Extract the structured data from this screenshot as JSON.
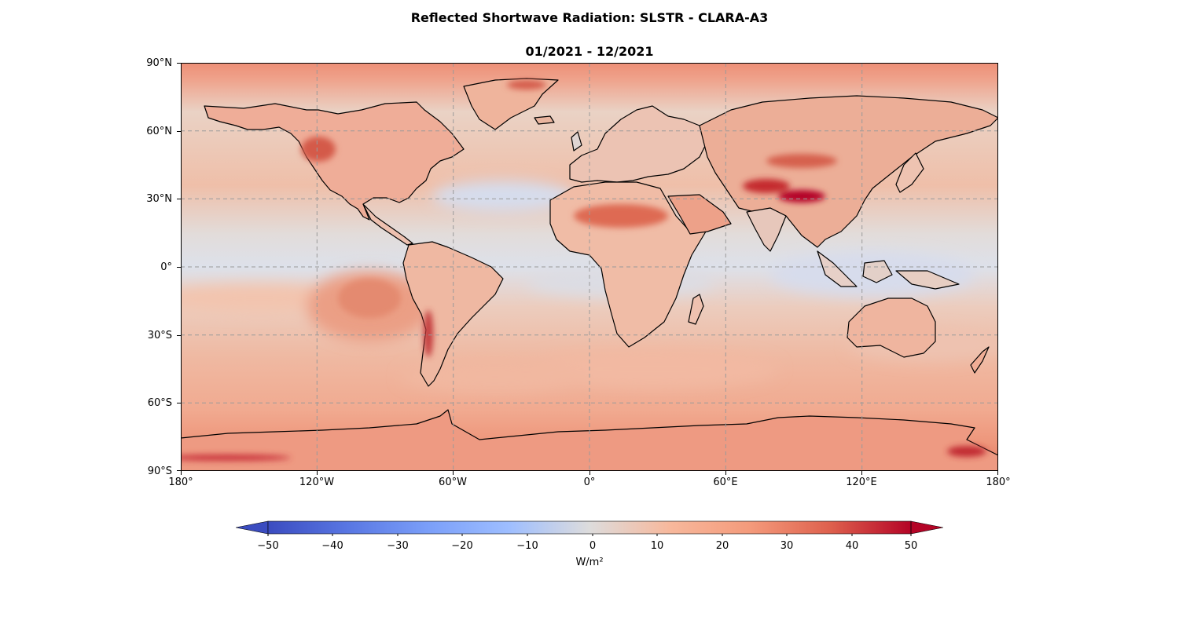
{
  "title": "Reflected Shortwave Radiation: SLSTR - CLARA-A3",
  "subtitle": "01/2021 - 12/2021",
  "map": {
    "projection": "PlateCarree",
    "lon_range": [
      -180,
      180
    ],
    "lat_range": [
      -90,
      90
    ],
    "gridlines": "dashed grey every 60° lon and 30° lat",
    "coastlines": "black",
    "lat_ticks": [
      "90°N",
      "60°N",
      "30°N",
      "0°",
      "30°S",
      "60°S",
      "90°S"
    ],
    "lon_ticks": [
      "180°",
      "120°W",
      "60°W",
      "0°",
      "60°E",
      "120°E",
      "180°"
    ]
  },
  "colorbar": {
    "colormap": "coolwarm",
    "range": [
      -55,
      55
    ],
    "extend": "both",
    "ticks": [
      "−50",
      "−40",
      "−30",
      "−20",
      "−10",
      "0",
      "10",
      "20",
      "30",
      "40",
      "50"
    ],
    "label": "W/m²",
    "colors": {
      "low": "#3b4cc0",
      "mid": "#dddddd",
      "high": "#b40426"
    }
  },
  "field_summary": {
    "ocean_typical": "5 to 20",
    "tropical_oceans_typical": "-5 to 0",
    "tibetan_plateau": "above 50",
    "sahara": "30 to 40",
    "antarctic_margin": "above 45"
  }
}
